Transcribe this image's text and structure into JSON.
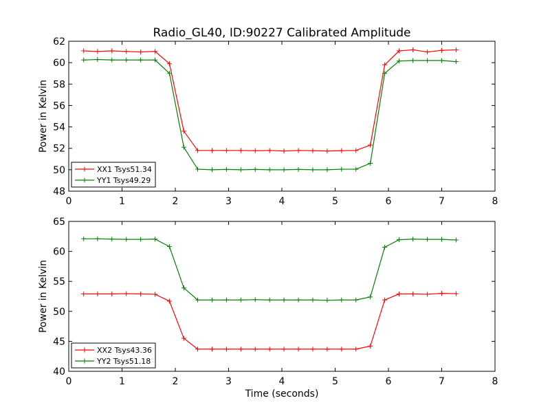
{
  "title": "Radio_GL40, ID:90227 Calibrated Amplitude",
  "colors": {
    "red": "#ff0000",
    "green": "#008000"
  },
  "chart_data": [
    {
      "type": "line",
      "title": "Radio_GL40, ID:90227 Calibrated Amplitude",
      "xlabel": "",
      "ylabel": "Power in Kelvin",
      "xlim": [
        0,
        8
      ],
      "ylim": [
        48,
        62
      ],
      "xticks": [
        0,
        1,
        2,
        3,
        4,
        5,
        6,
        7,
        8
      ],
      "yticks": [
        48,
        50,
        52,
        54,
        56,
        58,
        60,
        62
      ],
      "legend": "lower-left",
      "x": [
        0.28,
        0.54,
        0.81,
        1.08,
        1.35,
        1.62,
        1.89,
        2.16,
        2.42,
        2.69,
        2.96,
        3.23,
        3.5,
        3.77,
        4.04,
        4.31,
        4.58,
        4.85,
        5.12,
        5.39,
        5.66,
        5.93,
        6.2,
        6.46,
        6.73,
        7.0,
        7.27
      ],
      "series": [
        {
          "name": "XX1 Tsys51.34",
          "color": "#ff0000",
          "values": [
            61.1,
            61.05,
            61.1,
            61.05,
            61.0,
            61.05,
            59.9,
            53.6,
            51.8,
            51.8,
            51.8,
            51.8,
            51.78,
            51.8,
            51.75,
            51.8,
            51.78,
            51.75,
            51.78,
            51.8,
            52.3,
            59.8,
            61.1,
            61.2,
            61.0,
            61.15,
            61.2
          ]
        },
        {
          "name": "YY1 Tsys49.29",
          "color": "#008000",
          "values": [
            60.25,
            60.3,
            60.25,
            60.25,
            60.25,
            60.25,
            59.0,
            52.1,
            50.05,
            50.0,
            50.03,
            50.0,
            50.03,
            50.0,
            50.0,
            50.03,
            50.0,
            50.0,
            50.05,
            50.05,
            50.6,
            59.0,
            60.15,
            60.2,
            60.2,
            60.2,
            60.1
          ]
        }
      ]
    },
    {
      "type": "line",
      "title": "",
      "xlabel": "Time (seconds)",
      "ylabel": "Power in Kelvin",
      "xlim": [
        0,
        8
      ],
      "ylim": [
        40,
        65
      ],
      "xticks": [
        0,
        1,
        2,
        3,
        4,
        5,
        6,
        7,
        8
      ],
      "yticks": [
        40,
        45,
        50,
        55,
        60,
        65
      ],
      "legend": "lower-left",
      "x": [
        0.28,
        0.54,
        0.81,
        1.08,
        1.35,
        1.62,
        1.89,
        2.16,
        2.42,
        2.69,
        2.96,
        3.23,
        3.5,
        3.77,
        4.04,
        4.31,
        4.58,
        4.85,
        5.12,
        5.39,
        5.66,
        5.93,
        6.2,
        6.46,
        6.73,
        7.0,
        7.27
      ],
      "series": [
        {
          "name": "XX2 Tsys43.36",
          "color": "#ff0000",
          "values": [
            52.9,
            52.9,
            52.9,
            52.95,
            52.9,
            52.85,
            51.7,
            45.5,
            43.7,
            43.7,
            43.7,
            43.7,
            43.7,
            43.7,
            43.7,
            43.7,
            43.7,
            43.7,
            43.7,
            43.7,
            44.2,
            51.9,
            52.9,
            52.9,
            52.85,
            53.0,
            52.95
          ]
        },
        {
          "name": "YY2 Tsys51.18",
          "color": "#008000",
          "values": [
            62.1,
            62.1,
            62.05,
            62.0,
            62.0,
            62.05,
            60.8,
            53.9,
            51.9,
            51.9,
            51.9,
            51.9,
            51.95,
            51.9,
            51.9,
            51.9,
            51.9,
            51.85,
            51.9,
            51.9,
            52.4,
            60.7,
            61.95,
            62.05,
            62.0,
            62.0,
            61.9
          ]
        }
      ]
    }
  ]
}
